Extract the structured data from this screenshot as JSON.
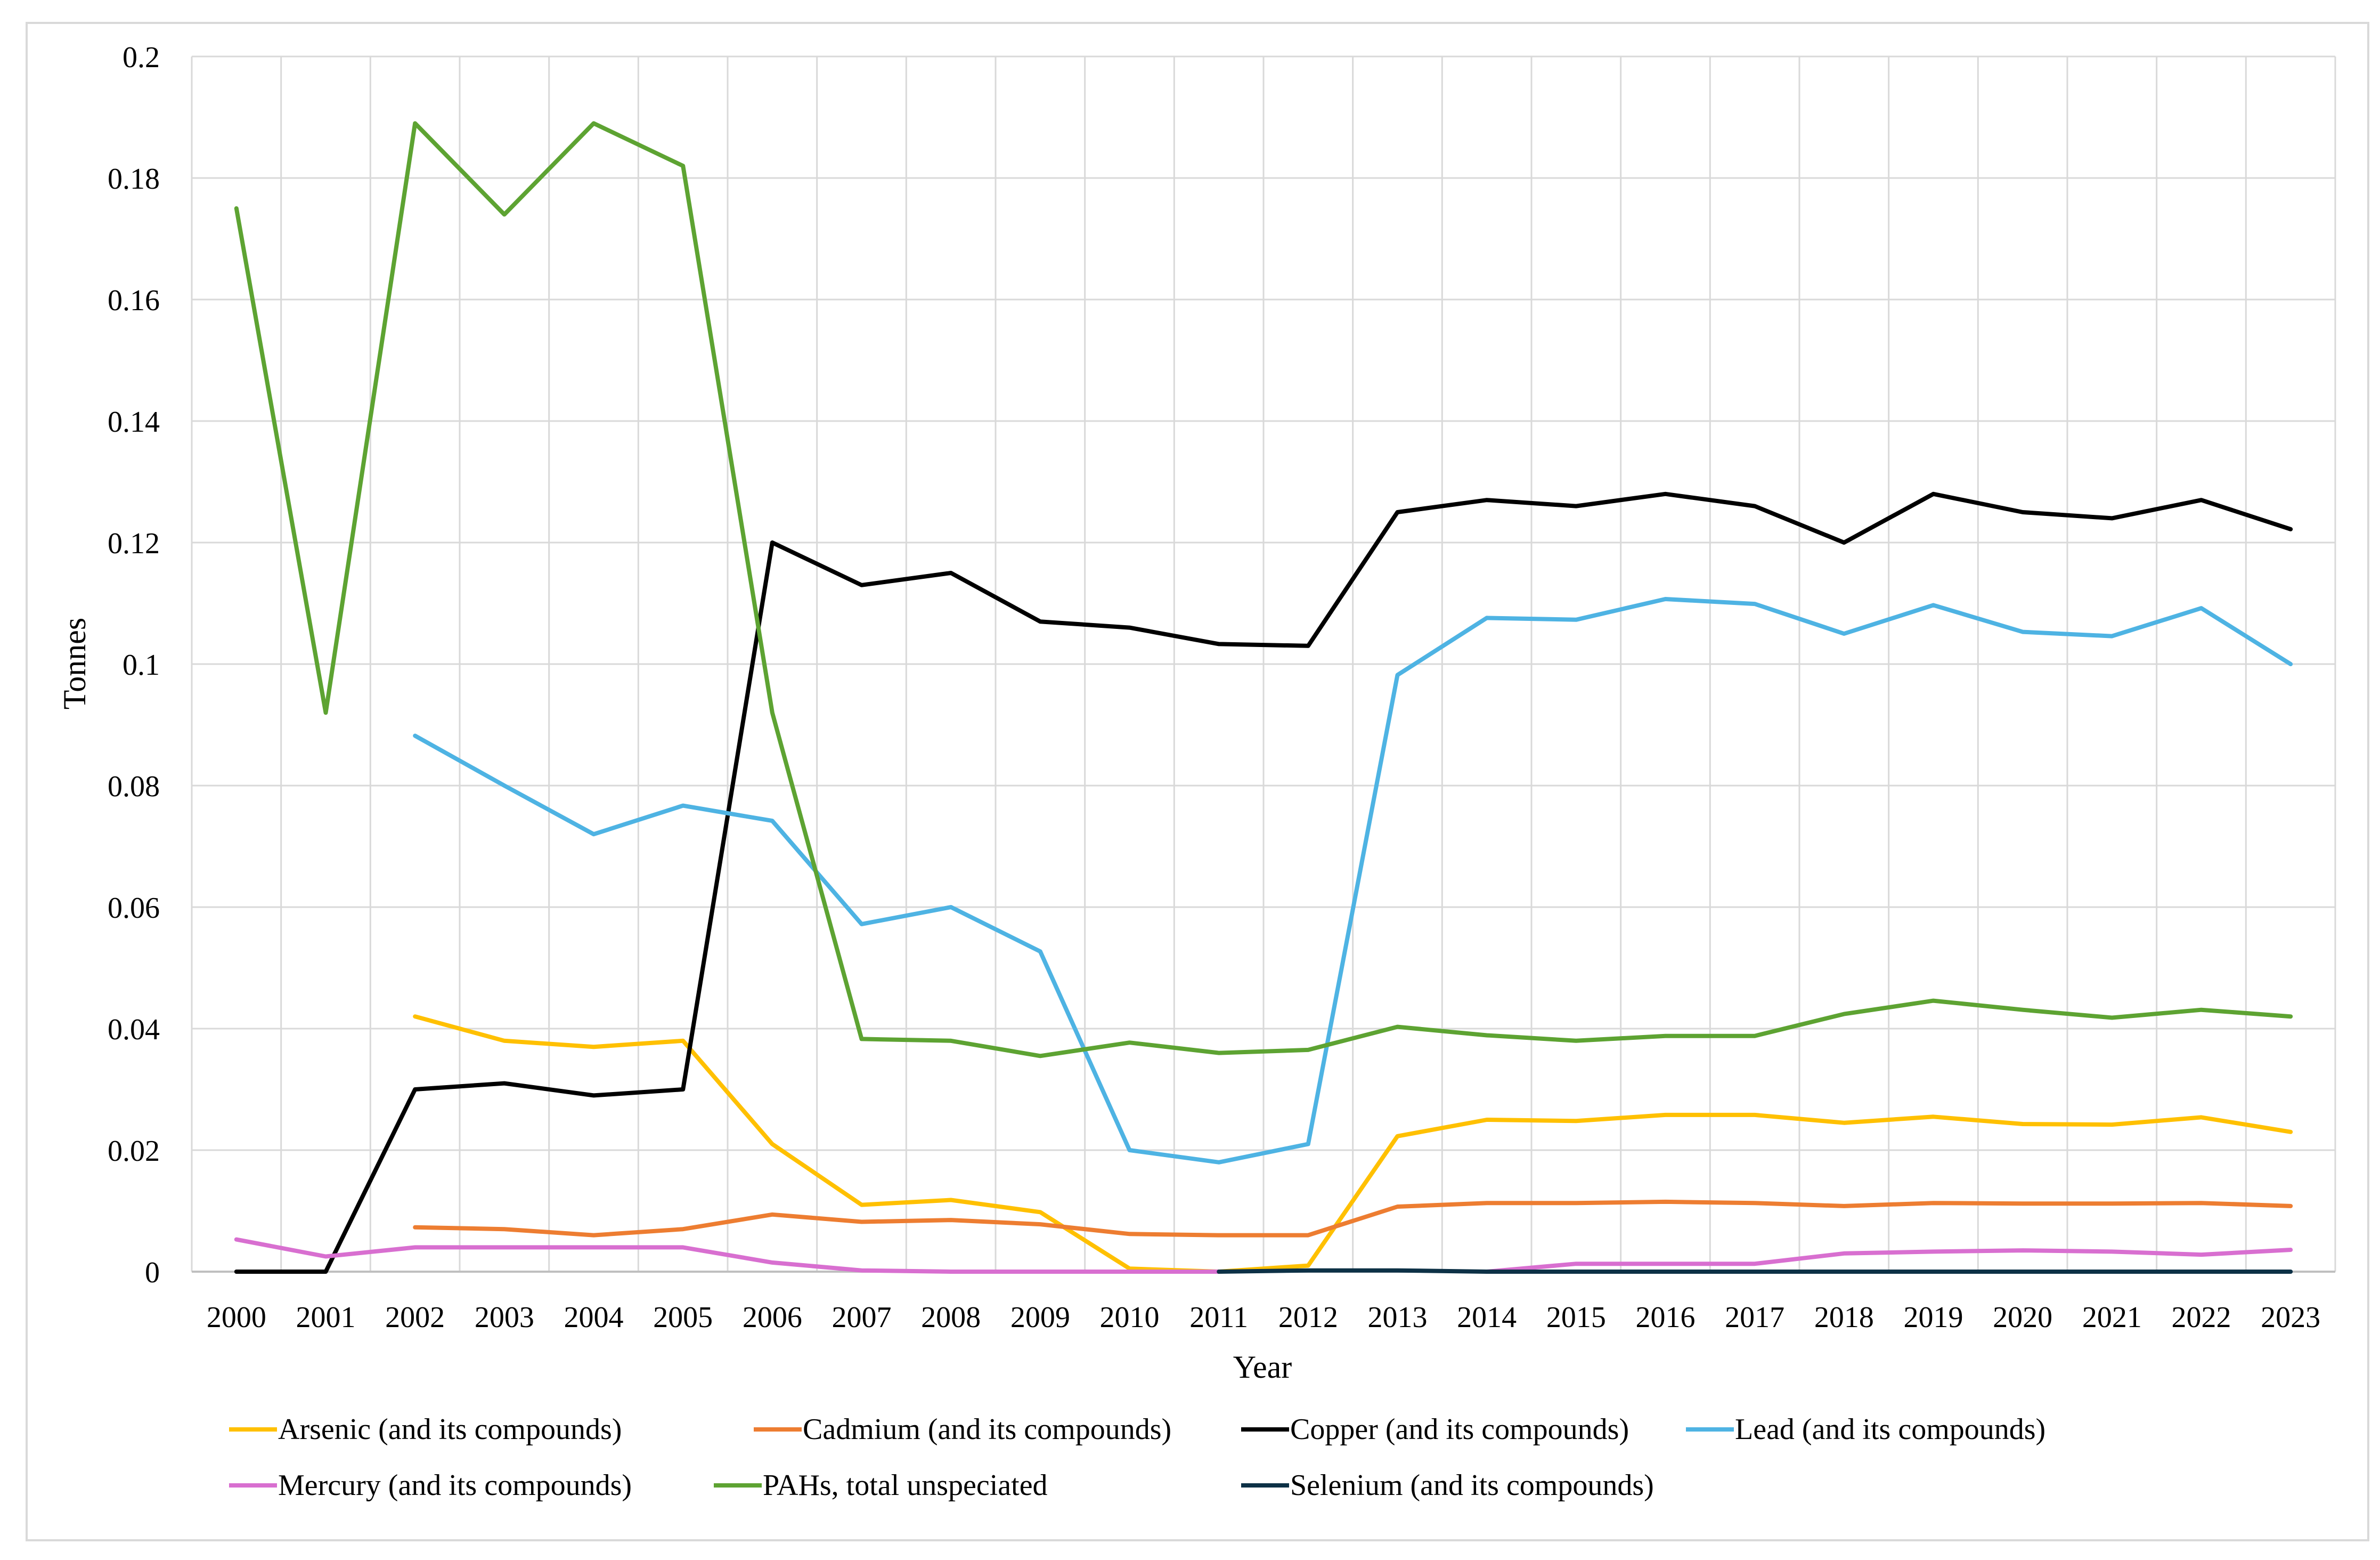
{
  "chart_data": {
    "type": "line",
    "title": "",
    "xlabel": "Year",
    "ylabel": "Tonnes",
    "ylim": [
      0,
      0.2
    ],
    "yticks": [
      0,
      0.02,
      0.04,
      0.06,
      0.08,
      0.1,
      0.12,
      0.14,
      0.16,
      0.18,
      0.2
    ],
    "ytick_labels": [
      "0",
      "0.02",
      "0.04",
      "0.06",
      "0.08",
      "0.1",
      "0.12",
      "0.14",
      "0.16",
      "0.18",
      "0.2"
    ],
    "categories": [
      "2000",
      "2001",
      "2002",
      "2003",
      "2004",
      "2005",
      "2006",
      "2007",
      "2008",
      "2009",
      "2010",
      "2011",
      "2012",
      "2013",
      "2014",
      "2015",
      "2016",
      "2017",
      "2018",
      "2019",
      "2020",
      "2021",
      "2022",
      "2023"
    ],
    "grid": true,
    "legend_position": "bottom",
    "series": [
      {
        "name": "Arsenic (and its compounds)",
        "color": "#FFC000",
        "values": [
          null,
          null,
          0.042,
          0.038,
          0.037,
          0.038,
          0.021,
          0.011,
          0.0118,
          0.0098,
          0.0005,
          0.0,
          0.001,
          0.0223,
          0.025,
          0.0248,
          0.0258,
          0.0258,
          0.0245,
          0.0255,
          0.0243,
          0.0242,
          0.0254,
          0.023
        ]
      },
      {
        "name": "Cadmium (and its compounds)",
        "color": "#ED7D31",
        "values": [
          null,
          null,
          0.0073,
          0.007,
          0.006,
          0.007,
          0.0094,
          0.0082,
          0.0085,
          0.0078,
          0.0062,
          0.006,
          0.006,
          0.0107,
          0.0113,
          0.0113,
          0.0115,
          0.0113,
          0.0108,
          0.0113,
          0.0112,
          0.0112,
          0.0113,
          0.0108
        ]
      },
      {
        "name": "Copper (and its compounds)",
        "color": "#000000",
        "values": [
          0.0,
          0.0,
          0.03,
          0.031,
          0.029,
          0.03,
          0.12,
          0.113,
          0.115,
          0.107,
          0.106,
          0.1033,
          0.103,
          0.125,
          0.127,
          0.126,
          0.128,
          0.126,
          0.12,
          0.128,
          0.125,
          0.124,
          0.127,
          0.1222
        ]
      },
      {
        "name": "Lead (and its compounds)",
        "color": "#4EB3E3",
        "values": [
          null,
          null,
          0.0882,
          0.08,
          0.072,
          0.0767,
          0.0742,
          0.0572,
          0.06,
          0.0527,
          0.02,
          0.018,
          0.021,
          0.0982,
          0.1076,
          0.1073,
          0.1107,
          0.1099,
          0.105,
          0.1097,
          0.1053,
          0.1046,
          0.1092,
          0.1
        ]
      },
      {
        "name": "Mercury (and its compounds)",
        "color": "#D86FD0",
        "values": [
          0.0053,
          0.0025,
          0.004,
          0.004,
          0.004,
          0.004,
          0.0015,
          0.0002,
          0.0,
          0.0,
          0.0,
          0.0,
          null,
          null,
          0.0,
          0.0013,
          0.0013,
          0.0013,
          0.003,
          0.0033,
          0.0035,
          0.0033,
          0.0028,
          0.0036
        ]
      },
      {
        "name": "PAHs, total unspeciated",
        "color": "#5DA332",
        "values": [
          0.175,
          0.092,
          0.189,
          0.174,
          0.189,
          0.182,
          0.092,
          0.0383,
          0.038,
          0.0355,
          0.0377,
          0.036,
          0.0365,
          0.0403,
          0.0389,
          0.038,
          0.0388,
          0.0388,
          0.0424,
          0.0446,
          0.0431,
          0.0418,
          0.0431,
          0.042
        ]
      },
      {
        "name": "Selenium (and its compounds)",
        "color": "#0D3146",
        "values": [
          null,
          null,
          null,
          null,
          null,
          null,
          null,
          null,
          null,
          null,
          null,
          0.0,
          0.0002,
          0.0002,
          0.0,
          0.0,
          0.0,
          0.0,
          0.0,
          0.0,
          0.0,
          0.0,
          0.0,
          0.0
        ]
      }
    ]
  }
}
